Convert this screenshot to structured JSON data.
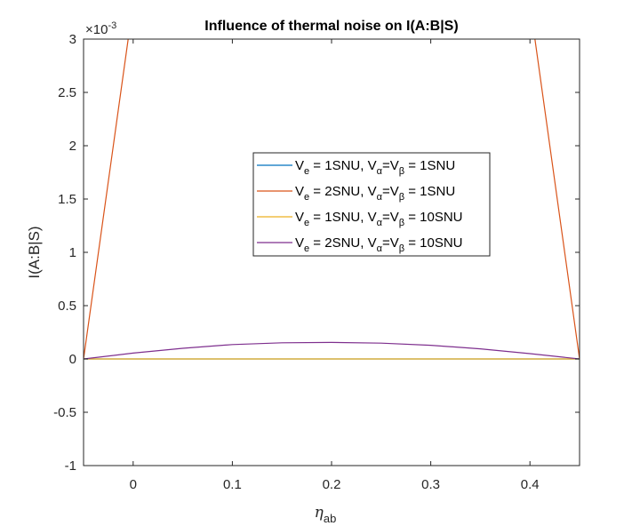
{
  "chart_data": {
    "type": "line",
    "title": "Influence of thermal noise on I(A:B|S)",
    "xlabel": {
      "symbol": "η",
      "subscript": "ab"
    },
    "ylabel": "I(A:B|S)",
    "exponent_label": {
      "prefix": "×10",
      "power": "-3"
    },
    "xlim": [
      -0.05,
      0.45
    ],
    "ylim": [
      -1,
      3
    ],
    "xticks": [
      0,
      0.1,
      0.2,
      0.3,
      0.4
    ],
    "xtick_labels": [
      "0",
      "0.1",
      "0.2",
      "0.3",
      "0.4"
    ],
    "yticks": [
      -1,
      -0.5,
      0,
      0.5,
      1,
      1.5,
      2,
      2.5,
      3
    ],
    "ytick_labels": [
      "-1",
      "-0.5",
      "0",
      "0.5",
      "1",
      "1.5",
      "2",
      "2.5",
      "3"
    ],
    "grid": false,
    "legend_position": "center-right",
    "series": [
      {
        "name": "V_e = 1SNU, V_α=V_β = 1SNU",
        "legend": {
          "a": "V",
          "a_sub": "e",
          "b": " = 1SNU, V",
          "b_sub": "α",
          "c": "=V",
          "c_sub": "β",
          "d": " = 1SNU"
        },
        "color": "#0072BD",
        "x": [
          -0.05,
          0.0,
          0.1,
          0.2,
          0.3,
          0.4,
          0.45
        ],
        "y": [
          0,
          0,
          0,
          0,
          0,
          0,
          0
        ]
      },
      {
        "name": "V_e = 2SNU, V_α=V_β = 1SNU",
        "legend": {
          "a": "V",
          "a_sub": "e",
          "b": " = 2SNU, V",
          "b_sub": "α",
          "c": "=V",
          "c_sub": "β",
          "d": " = 1SNU"
        },
        "color": "#D95319",
        "x": [
          -0.05,
          -0.005,
          0.0,
          0.4,
          0.405,
          0.45
        ],
        "y": [
          0,
          3.0,
          3.3,
          3.3,
          3.0,
          0
        ]
      },
      {
        "name": "V_e = 1SNU, V_α=V_β = 10SNU",
        "legend": {
          "a": "V",
          "a_sub": "e",
          "b": " = 1SNU, V",
          "b_sub": "α",
          "c": "=V",
          "c_sub": "β",
          "d": " = 10SNU"
        },
        "color": "#EDB120",
        "x": [
          -0.05,
          0.0,
          0.1,
          0.2,
          0.3,
          0.4,
          0.45
        ],
        "y": [
          0,
          0,
          0,
          0,
          0,
          0,
          0
        ]
      },
      {
        "name": "V_e = 2SNU, V_α=V_β = 10SNU",
        "legend": {
          "a": "V",
          "a_sub": "e",
          "b": " = 2SNU, V",
          "b_sub": "α",
          "c": "=V",
          "c_sub": "β",
          "d": " = 10SNU"
        },
        "color": "#7E2F8E",
        "x": [
          -0.05,
          0.0,
          0.05,
          0.1,
          0.15,
          0.2,
          0.25,
          0.3,
          0.35,
          0.4,
          0.45
        ],
        "y": [
          0,
          0.055,
          0.1,
          0.135,
          0.152,
          0.155,
          0.148,
          0.128,
          0.095,
          0.05,
          0
        ]
      }
    ]
  }
}
